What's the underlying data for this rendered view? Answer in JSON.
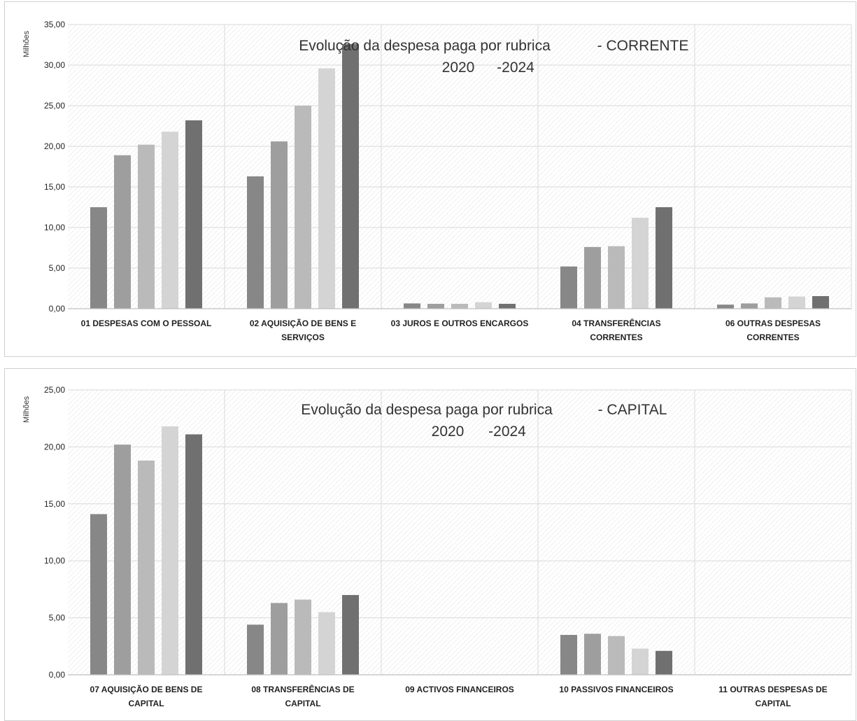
{
  "chart_data": [
    {
      "type": "bar",
      "title_line1": "Evolução da despesa paga por rubrica",
      "title_suffix": "- CORRENTE",
      "title_line2_a": "2020",
      "title_line2_b": "-2024",
      "yunit": "Milhões",
      "ylim": [
        0,
        35
      ],
      "yticks": [
        "0,00",
        "5,00",
        "10,00",
        "15,00",
        "20,00",
        "25,00",
        "30,00",
        "35,00"
      ],
      "categories": [
        [
          "01  DESPESAS COM O PESSOAL"
        ],
        [
          "02  AQUISIÇÃO DE BENS E",
          "SERVIÇOS"
        ],
        [
          "03  JUROS E OUTROS ENCARGOS"
        ],
        [
          "04  TRANSFERÊNCIAS",
          "CORRENTES"
        ],
        [
          "06  OUTRAS DESPESAS",
          "CORRENTES"
        ]
      ],
      "values": [
        [
          12.5,
          18.9,
          20.2,
          21.8,
          23.2
        ],
        [
          16.3,
          20.6,
          25.0,
          29.6,
          32.6
        ],
        [
          0.65,
          0.6,
          0.6,
          0.8,
          0.6
        ],
        [
          5.2,
          7.6,
          7.7,
          11.2,
          12.5
        ],
        [
          0.5,
          0.65,
          1.4,
          1.5,
          1.55
        ]
      ],
      "grid": true
    },
    {
      "type": "bar",
      "title_line1": "Evolução da despesa paga por rubrica",
      "title_suffix": "- CAPITAL",
      "title_line2_a": "2020",
      "title_line2_b": "-2024",
      "yunit": "Milhões",
      "ylim": [
        0,
        25
      ],
      "yticks": [
        "0,00",
        "5,00",
        "10,00",
        "15,00",
        "20,00",
        "25,00"
      ],
      "categories": [
        [
          "07  AQUISIÇÃO DE BENS DE",
          "CAPITAL"
        ],
        [
          "08  TRANSFERÊNCIAS DE",
          "CAPITAL"
        ],
        [
          "09  ACTIVOS FINANCEIROS"
        ],
        [
          "10  PASSIVOS FINANCEIROS"
        ],
        [
          "11  OUTRAS DESPESAS DE",
          "CAPITAL"
        ]
      ],
      "values": [
        [
          14.1,
          20.2,
          18.8,
          21.8,
          21.1
        ],
        [
          4.4,
          6.3,
          6.6,
          5.5,
          7.0
        ],
        [
          0,
          0,
          0,
          0,
          0
        ],
        [
          3.5,
          3.6,
          3.4,
          2.3,
          2.1
        ],
        [
          0,
          0,
          0,
          0,
          0
        ]
      ],
      "grid": true
    }
  ],
  "colors": {
    "bars": [
      "#878787",
      "#9e9e9e",
      "#bababa",
      "#d4d4d4",
      "#707070"
    ],
    "grid": "#d9d9d9",
    "axis": "#bfbfbf"
  }
}
